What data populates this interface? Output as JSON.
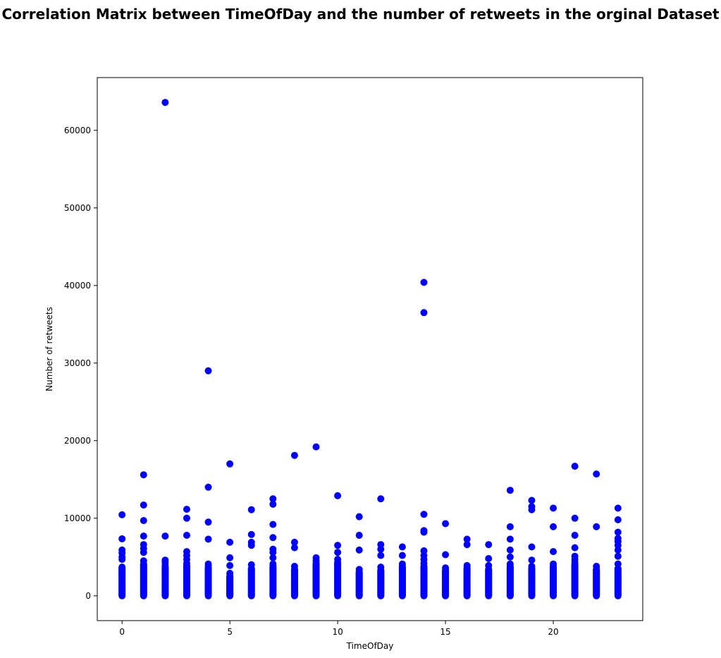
{
  "chart_data": {
    "type": "scatter",
    "title": "Correlation Matrix between TimeOfDay and the number of retweets in the orginal Dataset",
    "xlabel": "TimeOfDay",
    "ylabel": "Number of retweets",
    "xlim": [
      -1.15,
      24.15
    ],
    "ylim": [
      -3200,
      66800
    ],
    "xticks": [
      0,
      5,
      10,
      15,
      20
    ],
    "yticks": [
      0,
      10000,
      20000,
      30000,
      40000,
      50000,
      60000
    ],
    "grid": false,
    "legend": "none",
    "marker_color": "#0000ff",
    "series": [
      {
        "points": [
          [
            0,
            10450
          ],
          [
            0,
            7350
          ],
          [
            0,
            5900
          ],
          [
            0,
            5500
          ],
          [
            0,
            5000
          ],
          [
            0,
            4700
          ],
          [
            1,
            15600
          ],
          [
            1,
            11700
          ],
          [
            1,
            9700
          ],
          [
            1,
            7700
          ],
          [
            1,
            6600
          ],
          [
            1,
            6100
          ],
          [
            1,
            5600
          ],
          [
            1,
            4500
          ],
          [
            2,
            63600
          ],
          [
            2,
            7700
          ],
          [
            2,
            4600
          ],
          [
            2,
            4300
          ],
          [
            2,
            3900
          ],
          [
            3,
            11150
          ],
          [
            3,
            10000
          ],
          [
            3,
            7800
          ],
          [
            3,
            5700
          ],
          [
            3,
            5200
          ],
          [
            3,
            4700
          ],
          [
            3,
            4200
          ],
          [
            4,
            29000
          ],
          [
            4,
            14000
          ],
          [
            4,
            9500
          ],
          [
            4,
            7300
          ],
          [
            4,
            4100
          ],
          [
            4,
            3800
          ],
          [
            5,
            17000
          ],
          [
            5,
            6900
          ],
          [
            5,
            4900
          ],
          [
            5,
            3900
          ],
          [
            5,
            2900
          ],
          [
            6,
            11100
          ],
          [
            6,
            7900
          ],
          [
            6,
            6900
          ],
          [
            6,
            6500
          ],
          [
            6,
            4000
          ],
          [
            7,
            12500
          ],
          [
            7,
            11800
          ],
          [
            7,
            9200
          ],
          [
            7,
            7500
          ],
          [
            7,
            6000
          ],
          [
            7,
            5600
          ],
          [
            7,
            4900
          ],
          [
            7,
            4100
          ],
          [
            8,
            18100
          ],
          [
            8,
            6900
          ],
          [
            8,
            6200
          ],
          [
            8,
            3800
          ],
          [
            9,
            19200
          ],
          [
            9,
            4900
          ],
          [
            9,
            4500
          ],
          [
            10,
            12900
          ],
          [
            10,
            6500
          ],
          [
            10,
            5600
          ],
          [
            10,
            4700
          ],
          [
            11,
            10200
          ],
          [
            11,
            7800
          ],
          [
            11,
            5900
          ],
          [
            11,
            3400
          ],
          [
            12,
            12500
          ],
          [
            12,
            6600
          ],
          [
            12,
            6000
          ],
          [
            12,
            5200
          ],
          [
            12,
            3700
          ],
          [
            13,
            6300
          ],
          [
            13,
            5200
          ],
          [
            13,
            4100
          ],
          [
            14,
            40400
          ],
          [
            14,
            36500
          ],
          [
            14,
            10500
          ],
          [
            14,
            8400
          ],
          [
            14,
            8200
          ],
          [
            14,
            5800
          ],
          [
            14,
            5200
          ],
          [
            14,
            4700
          ],
          [
            14,
            4200
          ],
          [
            15,
            9300
          ],
          [
            15,
            5300
          ],
          [
            15,
            3600
          ],
          [
            16,
            7300
          ],
          [
            16,
            6600
          ],
          [
            16,
            3900
          ],
          [
            17,
            6600
          ],
          [
            17,
            4800
          ],
          [
            17,
            3900
          ],
          [
            18,
            13600
          ],
          [
            18,
            8900
          ],
          [
            18,
            7300
          ],
          [
            18,
            5900
          ],
          [
            18,
            5000
          ],
          [
            18,
            4100
          ],
          [
            19,
            12300
          ],
          [
            19,
            11500
          ],
          [
            19,
            11100
          ],
          [
            19,
            6300
          ],
          [
            19,
            4600
          ],
          [
            19,
            3800
          ],
          [
            20,
            11300
          ],
          [
            20,
            8900
          ],
          [
            20,
            5700
          ],
          [
            20,
            4100
          ],
          [
            21,
            16700
          ],
          [
            21,
            10000
          ],
          [
            21,
            7800
          ],
          [
            21,
            6200
          ],
          [
            21,
            5100
          ],
          [
            21,
            4700
          ],
          [
            21,
            4300
          ],
          [
            22,
            15700
          ],
          [
            22,
            8900
          ],
          [
            22,
            3800
          ],
          [
            23,
            11300
          ],
          [
            23,
            9800
          ],
          [
            23,
            8200
          ],
          [
            23,
            7400
          ],
          [
            23,
            7000
          ],
          [
            23,
            6500
          ],
          [
            23,
            5900
          ],
          [
            23,
            5100
          ],
          [
            23,
            4100
          ]
        ],
        "column_base": [
          [
            0,
            3700
          ],
          [
            1,
            4100
          ],
          [
            2,
            3700
          ],
          [
            3,
            3900
          ],
          [
            4,
            3600
          ],
          [
            5,
            2500
          ],
          [
            6,
            3500
          ],
          [
            7,
            3800
          ],
          [
            8,
            3400
          ],
          [
            9,
            4200
          ],
          [
            10,
            4300
          ],
          [
            11,
            3100
          ],
          [
            12,
            3300
          ],
          [
            13,
            3800
          ],
          [
            14,
            3800
          ],
          [
            15,
            3300
          ],
          [
            16,
            3600
          ],
          [
            17,
            3400
          ],
          [
            18,
            3800
          ],
          [
            19,
            3500
          ],
          [
            20,
            3800
          ],
          [
            21,
            4000
          ],
          [
            22,
            3400
          ],
          [
            23,
            3500
          ]
        ]
      }
    ]
  }
}
